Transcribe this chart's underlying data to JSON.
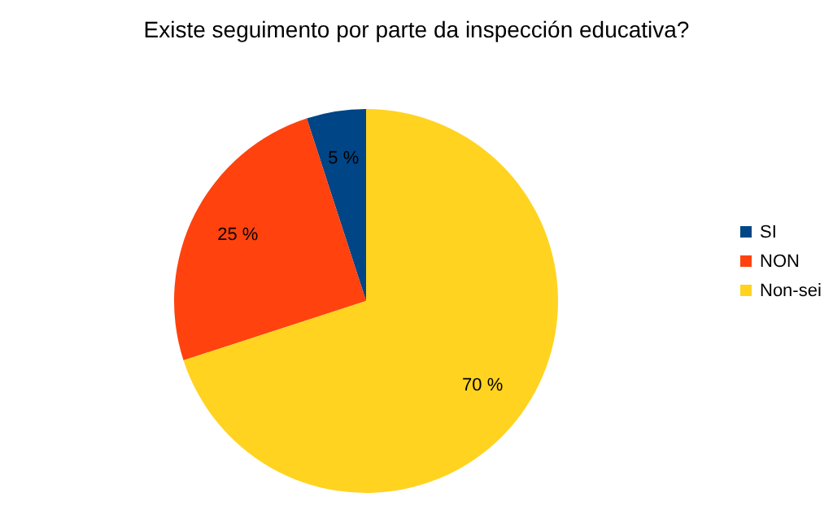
{
  "chart_data": {
    "type": "pie",
    "title": "Existe seguimento por parte da inspección educativa?",
    "categories": [
      "SI",
      "NON",
      "Non-sei"
    ],
    "values": [
      5,
      25,
      70
    ],
    "colors": [
      "#004586",
      "#ff420e",
      "#ffd320"
    ],
    "value_labels": [
      "5 %",
      "25 %",
      "70 %"
    ],
    "legend": "right"
  }
}
